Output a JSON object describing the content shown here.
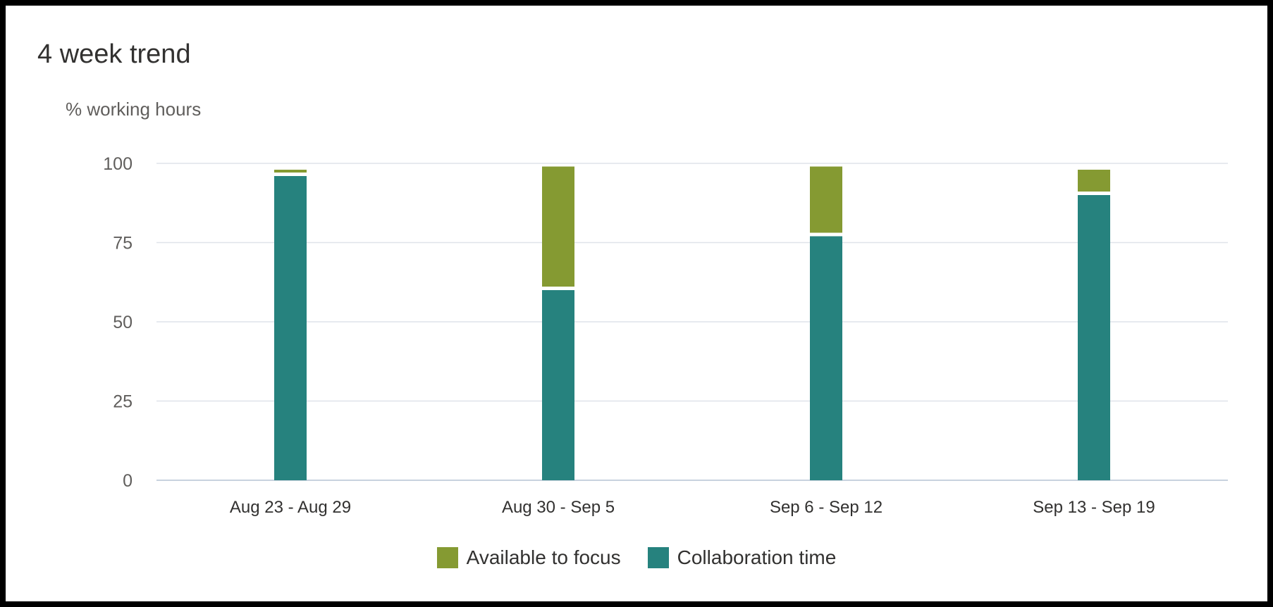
{
  "header": {
    "title": "4 week trend",
    "y_unit": "% working hours"
  },
  "colors": {
    "focus": "#859a32",
    "collaboration": "#26827e",
    "grid": "#dfe3ea",
    "axis": "#c8d2de"
  },
  "chart_data": {
    "type": "bar",
    "stacked": true,
    "categories": [
      "Aug 23 - Aug 29",
      "Aug 30 - Sep 5",
      "Sep 6 - Sep 12",
      "Sep 13 - Sep 19"
    ],
    "series": [
      {
        "name": "Collaboration time",
        "color": "#26827e",
        "values": [
          96,
          60,
          77,
          90
        ]
      },
      {
        "name": "Available to focus",
        "color": "#859a32",
        "values": [
          2,
          39,
          22,
          8
        ]
      }
    ],
    "ylim": [
      0,
      100
    ],
    "yticks": [
      0,
      25,
      50,
      75,
      100
    ],
    "ylabel": "% working hours",
    "grid": true,
    "legend_position": "bottom"
  },
  "legend": {
    "items": [
      {
        "label": "Available to focus",
        "color": "#859a32"
      },
      {
        "label": "Collaboration time",
        "color": "#26827e"
      }
    ]
  }
}
